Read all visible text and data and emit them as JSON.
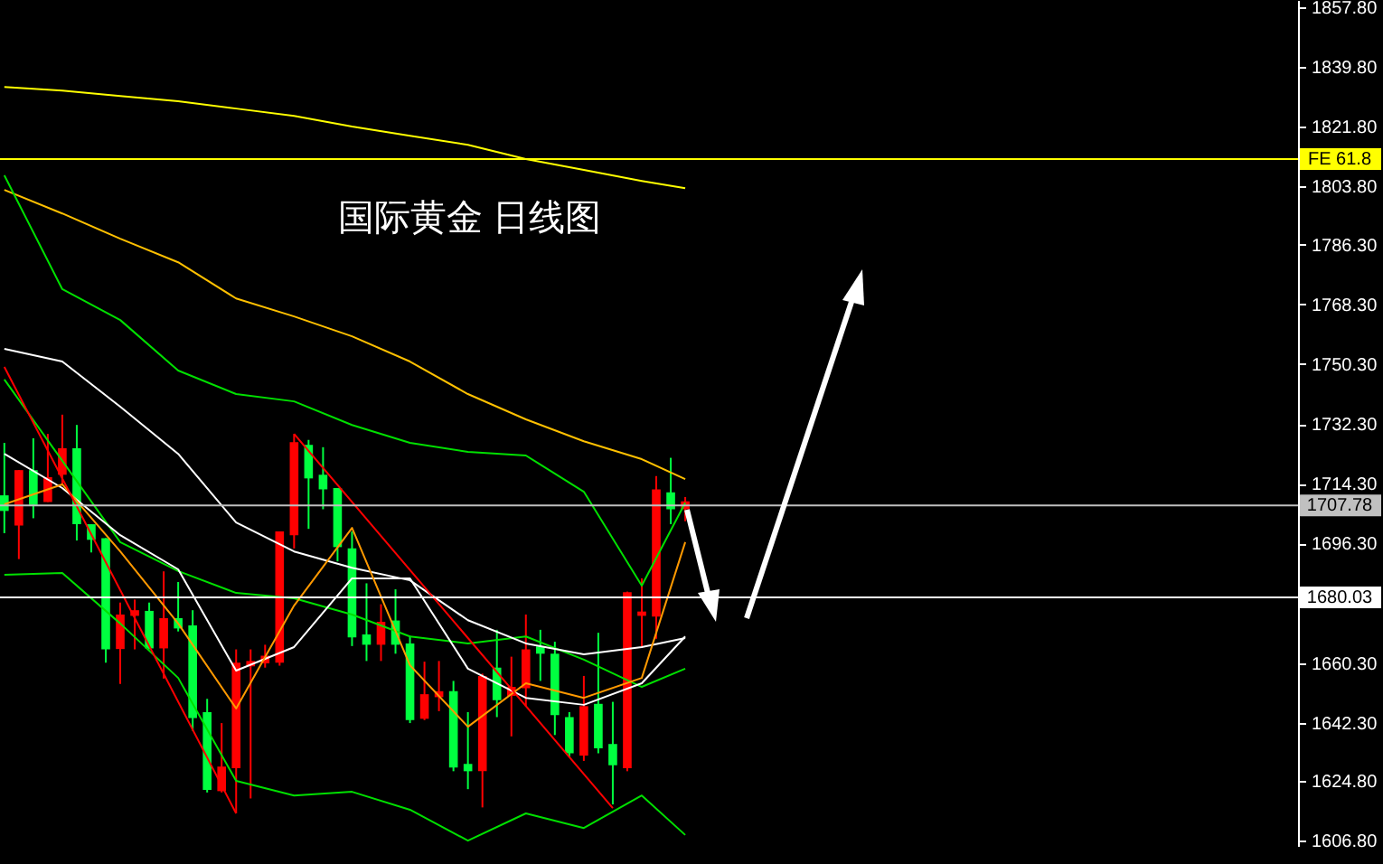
{
  "chart_data": {
    "type": "candlestick",
    "title": "国际黄金 日线图",
    "categories": [
      null,
      null,
      null,
      null,
      null,
      null,
      null,
      null,
      null,
      null,
      null,
      null,
      null,
      null,
      null,
      null,
      null,
      null,
      null,
      null,
      null,
      null,
      null,
      null,
      null,
      null,
      null,
      null,
      null,
      null,
      null,
      null,
      null,
      null,
      null,
      null,
      null,
      null,
      null,
      null,
      null,
      null,
      null,
      null,
      null,
      null,
      null,
      null,
      null,
      null,
      null,
      null,
      null,
      null,
      null,
      null,
      null,
      null,
      null,
      null,
      null,
      null,
      null,
      null,
      null,
      null,
      null,
      null,
      null,
      null,
      null,
      null,
      null,
      null,
      null,
      null,
      null,
      null,
      null,
      null,
      null,
      null,
      null,
      null,
      null,
      null,
      null,
      null,
      null,
      null
    ],
    "ohlc": [
      [
        1710.8,
        1726.6,
        1699.4,
        1706.1
      ],
      [
        1701.7,
        1718.4,
        1691.6,
        1718.4
      ],
      [
        1718.4,
        1728.0,
        1703.9,
        1707.9
      ],
      [
        1708.8,
        1729.3,
        1708.8,
        1716.3
      ],
      [
        1717.0,
        1735.1,
        1713.9,
        1725.0
      ],
      [
        1725.0,
        1732.0,
        1697.2,
        1702.1
      ],
      [
        1702.1,
        1702.1,
        1693.6,
        1697.4
      ],
      [
        1697.9,
        1697.9,
        1660.4,
        1664.4
      ],
      [
        1664.5,
        1678.5,
        1654.0,
        1674.9
      ],
      [
        1674.5,
        1679.4,
        1664.4,
        1676.2
      ],
      [
        1676.0,
        1678.5,
        1664.4,
        1664.7
      ],
      [
        1664.7,
        1687.9,
        1655.6,
        1673.8
      ],
      [
        1673.8,
        1684.7,
        1669.8,
        1670.7
      ],
      [
        1671.6,
        1676.2,
        1639.9,
        1643.7
      ],
      [
        1645.5,
        1649.5,
        1621.3,
        1622.1
      ],
      [
        1621.7,
        1642.2,
        1621.3,
        1629.1
      ],
      [
        1628.6,
        1664.4,
        1615.0,
        1660.4
      ],
      [
        1659.3,
        1664.4,
        1619.5,
        1660.9
      ],
      [
        1660.2,
        1665.8,
        1658.9,
        1662.5
      ],
      [
        1660.4,
        1699.9,
        1659.5,
        1699.9
      ],
      [
        1698.8,
        1729.3,
        1694.8,
        1726.8
      ],
      [
        1726.0,
        1727.5,
        1700.7,
        1715.9
      ],
      [
        1717.0,
        1725.3,
        1706.6,
        1712.6
      ],
      [
        1713.0,
        1713.0,
        1690.9,
        1695.2
      ],
      [
        1694.8,
        1699.9,
        1665.4,
        1668.0
      ],
      [
        1668.9,
        1684.3,
        1660.9,
        1665.8
      ],
      [
        1665.8,
        1678.0,
        1660.9,
        1672.7
      ],
      [
        1673.1,
        1682.5,
        1663.1,
        1665.8
      ],
      [
        1666.2,
        1668.5,
        1642.2,
        1643.1
      ],
      [
        1643.5,
        1660.7,
        1643.1,
        1650.9
      ],
      [
        1650.0,
        1660.9,
        1645.8,
        1651.8
      ],
      [
        1651.8,
        1654.9,
        1627.7,
        1628.8
      ],
      [
        1629.9,
        1645.5,
        1622.3,
        1627.7
      ],
      [
        1627.7,
        1657.1,
        1616.8,
        1656.4
      ],
      [
        1658.9,
        1670.3,
        1644.0,
        1649.1
      ],
      [
        1650.4,
        1662.2,
        1638.2,
        1653.1
      ],
      [
        1652.7,
        1674.9,
        1647.3,
        1664.4
      ],
      [
        1665.3,
        1670.3,
        1654.9,
        1663.1
      ],
      [
        1663.1,
        1666.7,
        1638.6,
        1644.6
      ],
      [
        1644.0,
        1645.5,
        1631.9,
        1633.1
      ],
      [
        1632.4,
        1656.4,
        1630.8,
        1647.3
      ],
      [
        1648.0,
        1669.4,
        1633.1,
        1634.6
      ],
      [
        1635.9,
        1648.6,
        1617.7,
        1629.5
      ],
      [
        1628.6,
        1681.8,
        1627.7,
        1681.6
      ],
      [
        1674.5,
        1685.8,
        1664.9,
        1675.8
      ],
      [
        1674.3,
        1716.6,
        1667.6,
        1712.6
      ],
      [
        1711.7,
        1722.1,
        1702.1,
        1706.6
      ],
      [
        1706.6,
        1710.3,
        1703.0,
        1709.0
      ],
      null,
      null,
      null,
      null,
      null,
      null,
      null,
      null,
      null,
      null,
      null,
      null,
      null,
      null,
      null,
      null,
      null,
      null,
      null,
      null,
      null,
      null,
      null,
      null,
      null,
      null,
      null,
      null,
      null,
      null,
      null,
      null,
      null,
      null,
      null,
      null,
      null,
      null,
      null,
      null,
      null,
      null
    ],
    "colors": [
      "#00ff40",
      "#ff0000",
      "#00ff40",
      "#ff0000",
      "#ff0000",
      "#00ff40",
      "#00ff40",
      "#00ff40",
      "#ff0000",
      "#ff0000",
      "#00ff40",
      "#ff0000",
      "#00ff40",
      "#00ff40",
      "#00ff40",
      "#ff0000",
      "#ff0000",
      "#ff0000",
      "#ff0000",
      "#ff0000",
      "#ff0000",
      "#00ff40",
      "#00ff40",
      "#00ff40",
      "#00ff40",
      "#00ff40",
      "#ff0000",
      "#00ff40",
      "#00ff40",
      "#ff0000",
      "#ff0000",
      "#00ff40",
      "#00ff40",
      "#ff0000",
      "#00ff40",
      "#ff0000",
      "#ff0000",
      "#00ff40",
      "#00ff40",
      "#00ff40",
      "#ff0000",
      "#00ff40",
      "#00ff40",
      "#ff0000",
      "#ff0000",
      "#ff0000",
      "#00ff40",
      "#ff0000",
      null,
      null,
      null,
      null,
      null,
      null,
      null,
      null,
      null,
      null,
      null,
      null,
      null,
      null,
      null,
      null,
      null,
      null,
      null,
      null,
      null,
      null,
      null,
      null,
      null,
      null,
      null,
      null,
      null,
      null,
      null,
      null,
      null,
      null,
      null,
      null,
      null,
      null,
      null,
      null,
      null,
      null
    ],
    "series": [
      {
        "type": "line",
        "color": "#ffff00",
        "values": [
          1833.8,
          null,
          null,
          null,
          1832.7,
          null,
          null,
          null,
          1831.1,
          null,
          null,
          null,
          1829.5,
          null,
          null,
          null,
          1827.3,
          null,
          null,
          null,
          1825.1,
          null,
          null,
          null,
          1821.9,
          null,
          null,
          null,
          1819.1,
          null,
          null,
          null,
          1816.4,
          null,
          null,
          null,
          1812.1,
          null,
          null,
          null,
          1808.8,
          null,
          null,
          null,
          1805.5,
          null,
          null,
          1803.3,
          null,
          null,
          null,
          null,
          null,
          null,
          null,
          null,
          null,
          null,
          null,
          null,
          null,
          null,
          null,
          null,
          null,
          null,
          null,
          null,
          null,
          null,
          null,
          null,
          null,
          null,
          null,
          null,
          null,
          null,
          null,
          null,
          null,
          null,
          null,
          null,
          null,
          null,
          null,
          null,
          null,
          null
        ]
      },
      {
        "type": "line",
        "color": "#ffc000",
        "values": [
          1802.8,
          null,
          null,
          null,
          1795.7,
          null,
          null,
          null,
          1788.1,
          null,
          null,
          null,
          1781.0,
          null,
          null,
          null,
          1770.1,
          null,
          null,
          null,
          1764.7,
          null,
          null,
          null,
          1758.7,
          null,
          null,
          null,
          1751.1,
          null,
          null,
          null,
          1741.3,
          null,
          null,
          null,
          1733.7,
          null,
          null,
          null,
          1727.1,
          null,
          null,
          null,
          1721.7,
          null,
          null,
          1715.7,
          null,
          null,
          null,
          null,
          null,
          null,
          null,
          null,
          null,
          null,
          null,
          null,
          null,
          null,
          null,
          null,
          null,
          null,
          null,
          null,
          null,
          null,
          null,
          null,
          null,
          null,
          null,
          null,
          null,
          null,
          null,
          null,
          null,
          null,
          null,
          null,
          null,
          null,
          null,
          null,
          null,
          null
        ]
      },
      {
        "type": "line",
        "color": "#00e000",
        "values": [
          1807.2,
          null,
          null,
          null,
          1772.9,
          null,
          null,
          null,
          1763.6,
          null,
          null,
          null,
          1748.4,
          null,
          null,
          null,
          1741.3,
          null,
          null,
          null,
          1739.1,
          null,
          null,
          null,
          1732.0,
          null,
          null,
          null,
          1726.6,
          null,
          null,
          null,
          1723.9,
          null,
          null,
          null,
          1722.8,
          null,
          null,
          null,
          1711.9,
          null,
          null,
          null,
          1683.6,
          null,
          null,
          1708.6,
          null,
          null,
          null,
          null,
          null,
          null,
          null,
          null,
          null,
          null,
          null,
          null,
          null,
          null,
          null,
          null,
          null,
          null,
          null,
          null,
          null,
          null,
          null,
          null,
          null,
          null,
          null,
          null,
          null,
          null,
          null,
          null,
          null,
          null,
          null,
          null,
          null,
          null,
          null,
          null,
          null,
          null
        ]
      },
      {
        "type": "line",
        "color": "#00e000",
        "values": [
          1745.7,
          null,
          null,
          null,
          1721.2,
          null,
          null,
          null,
          1696.7,
          null,
          null,
          null,
          1688.0,
          null,
          null,
          null,
          1681.4,
          null,
          null,
          null,
          1679.8,
          null,
          null,
          null,
          1674.9,
          null,
          null,
          null,
          1668.3,
          null,
          null,
          null,
          1666.2,
          null,
          null,
          null,
          1668.3,
          null,
          null,
          null,
          1661.3,
          null,
          null,
          null,
          1653.1,
          null,
          null,
          1658.6,
          null,
          null,
          null,
          null,
          null,
          null,
          null,
          null,
          null,
          null,
          null,
          null,
          null,
          null,
          null,
          null,
          null,
          null,
          null,
          null,
          null,
          null,
          null,
          null,
          null,
          null,
          null,
          null,
          null,
          null,
          null,
          null,
          null,
          null,
          null,
          null,
          null,
          null,
          null,
          null,
          null,
          null
        ]
      },
      {
        "type": "line",
        "color": "#00e000",
        "values": [
          1686.9,
          null,
          null,
          null,
          1687.4,
          null,
          null,
          null,
          1672.2,
          null,
          null,
          null,
          1655.8,
          null,
          null,
          null,
          1624.8,
          null,
          null,
          null,
          1620.4,
          null,
          null,
          null,
          1621.5,
          null,
          null,
          null,
          1616.1,
          null,
          null,
          null,
          1606.8,
          null,
          null,
          null,
          1615.0,
          null,
          null,
          null,
          1610.6,
          null,
          null,
          null,
          1620.4,
          null,
          null,
          1608.5,
          null,
          null,
          null,
          null,
          null,
          null,
          null,
          null,
          null,
          null,
          null,
          null,
          null,
          null,
          null,
          null,
          null,
          null,
          null,
          null,
          null,
          null,
          null,
          null,
          null,
          null,
          null,
          null,
          null,
          null,
          null,
          null,
          null,
          null,
          null,
          null,
          null,
          null,
          null,
          null,
          null,
          null
        ]
      },
      {
        "type": "line",
        "color": "#ffffff",
        "values": [
          1754.9,
          null,
          null,
          null,
          1751.1,
          null,
          null,
          null,
          1737.5,
          null,
          null,
          null,
          1723.3,
          null,
          null,
          null,
          1702.6,
          null,
          null,
          null,
          1693.9,
          null,
          null,
          null,
          1689.0,
          null,
          null,
          null,
          1685.2,
          null,
          null,
          null,
          1673.2,
          null,
          null,
          null,
          1666.2,
          null,
          null,
          null,
          1662.9,
          null,
          null,
          null,
          1665.1,
          null,
          null,
          1667.8,
          null,
          null,
          null,
          null,
          null,
          null,
          null,
          null,
          null,
          null,
          null,
          null,
          null,
          null,
          null,
          null,
          null,
          null,
          null,
          null,
          null,
          null,
          null,
          null,
          null,
          null,
          null,
          null,
          null,
          null,
          null,
          null,
          null,
          null,
          null,
          null,
          null,
          null,
          null,
          null,
          null,
          null
        ]
      },
      {
        "type": "line",
        "color": "#ffffff",
        "values": [
          1723.3,
          null,
          null,
          null,
          1713.0,
          null,
          null,
          null,
          1698.8,
          null,
          null,
          null,
          1688.5,
          null,
          null,
          null,
          1658.0,
          null,
          null,
          null,
          1665.1,
          null,
          null,
          null,
          1685.8,
          null,
          null,
          null,
          1685.8,
          null,
          null,
          null,
          1658.6,
          null,
          null,
          null,
          1649.8,
          null,
          null,
          null,
          1647.7,
          null,
          null,
          null,
          1654.2,
          null,
          null,
          1668.3,
          null,
          null,
          null,
          null,
          null,
          null,
          null,
          null,
          null,
          null,
          null,
          null,
          null,
          null,
          null,
          null,
          null,
          null,
          null,
          null,
          null,
          null,
          null,
          null,
          null,
          null,
          null,
          null,
          null,
          null,
          null,
          null,
          null,
          null,
          null,
          null,
          null,
          null,
          null,
          null,
          null,
          null
        ]
      },
      {
        "type": "line",
        "color": "#ff9900",
        "values": [
          1708.1,
          null,
          null,
          null,
          1714.1,
          null,
          null,
          null,
          1693.9,
          null,
          null,
          null,
          1672.2,
          null,
          null,
          null,
          1646.6,
          null,
          null,
          null,
          1677.6,
          null,
          null,
          null,
          1701.0,
          null,
          null,
          null,
          1659.6,
          null,
          null,
          null,
          1641.1,
          null,
          null,
          null,
          1654.2,
          null,
          null,
          null,
          1649.8,
          null,
          null,
          null,
          1655.8,
          null,
          null,
          1696.7,
          null,
          null,
          null,
          null,
          null,
          null,
          null,
          null,
          null,
          null,
          null,
          null,
          null,
          null,
          null,
          null,
          null,
          null,
          null,
          null,
          null,
          null,
          null,
          null,
          null,
          null,
          null,
          null,
          null,
          null,
          null,
          null,
          null,
          null,
          null,
          null,
          null,
          null,
          null,
          null,
          null,
          null
        ]
      },
      {
        "type": "line",
        "color": "#ff0000",
        "values": [
          1749.5,
          null,
          null,
          null,
          null,
          null,
          null,
          null,
          null,
          null,
          null,
          null,
          null,
          null,
          null,
          null,
          1615.0,
          null,
          null,
          null,
          null,
          null,
          null,
          null,
          null,
          null,
          null,
          null,
          null,
          null,
          null,
          null,
          null,
          null,
          null,
          null,
          null,
          null,
          null,
          null,
          null,
          null,
          null,
          null,
          null,
          null,
          null,
          null,
          null,
          null,
          null,
          null,
          null,
          null,
          null,
          null,
          null,
          null,
          null,
          null,
          null,
          null,
          null,
          null,
          null,
          null,
          null,
          null,
          null,
          null,
          null,
          null,
          null,
          null,
          null,
          null,
          null,
          null,
          null,
          null,
          null,
          null,
          null,
          null,
          null,
          null,
          null,
          null,
          null,
          null
        ]
      },
      {
        "type": "line",
        "color": "#ff0000",
        "values": [
          null,
          null,
          null,
          null,
          null,
          null,
          null,
          null,
          null,
          null,
          null,
          null,
          null,
          null,
          null,
          null,
          null,
          null,
          null,
          null,
          1729.3,
          null,
          null,
          null,
          null,
          null,
          null,
          null,
          null,
          null,
          null,
          null,
          null,
          null,
          null,
          null,
          null,
          null,
          null,
          null,
          null,
          null,
          1616.6,
          null,
          null,
          null,
          null,
          null,
          null,
          null,
          null,
          null,
          null,
          null,
          null,
          null,
          null,
          null,
          null,
          null,
          null,
          null,
          null,
          null,
          null,
          null,
          null,
          null,
          null,
          null,
          null,
          null,
          null,
          null,
          null,
          null,
          null,
          null,
          null,
          null,
          null,
          null,
          null,
          null,
          null,
          null,
          null,
          null,
          null,
          null
        ]
      }
    ],
    "ylim": [
      1605.2,
      1860.0
    ],
    "yticks": [
      {
        "value": 1857.8,
        "label": "1857.80"
      },
      {
        "value": 1839.8,
        "label": "1839.80"
      },
      {
        "value": 1821.8,
        "label": "1821.80"
      },
      {
        "value": 1803.8,
        "label": "1803.80"
      },
      {
        "value": 1786.3,
        "label": "1786.30"
      },
      {
        "value": 1768.3,
        "label": "1768.30"
      },
      {
        "value": 1750.3,
        "label": "1750.30"
      },
      {
        "value": 1732.3,
        "label": "1732.30"
      },
      {
        "value": 1714.3,
        "label": "1714.30"
      },
      {
        "value": 1696.3,
        "label": "1696.30"
      },
      {
        "value": 1660.3,
        "label": "1660.30"
      },
      {
        "value": 1642.3,
        "label": "1642.30"
      },
      {
        "value": 1624.8,
        "label": "1624.80"
      },
      {
        "value": 1606.8,
        "label": "1606.80"
      }
    ],
    "tick_labels": "y",
    "ref_lines": [
      {
        "axis": "y",
        "value": 1812.1,
        "label": "FE 61.8",
        "color": "#ffff00"
      },
      {
        "axis": "y",
        "value": 1707.78,
        "label": "1707.78",
        "color": "#c0c0c0"
      },
      {
        "axis": "y",
        "value": 1680.03,
        "label": "1680.03",
        "color": "#ffffff"
      }
    ]
  }
}
